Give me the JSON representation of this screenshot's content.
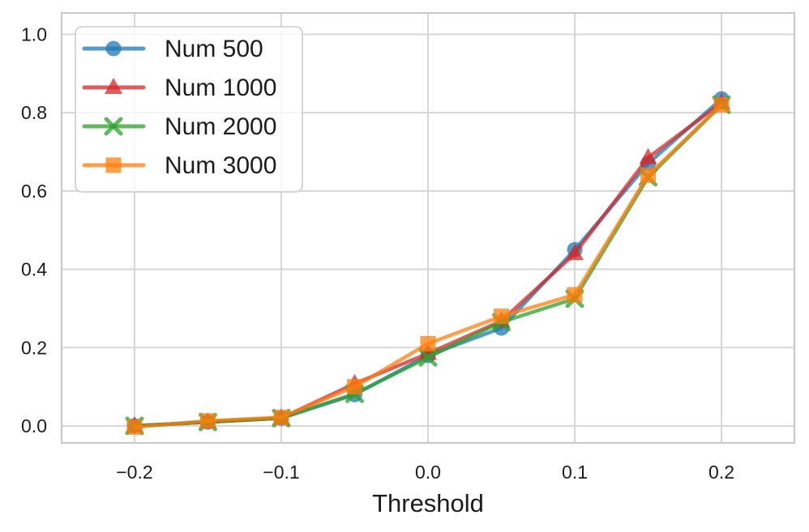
{
  "figure": {
    "xlabel": "Threshold"
  },
  "chart_data": {
    "type": "line",
    "title": "",
    "xlabel": "Threshold",
    "ylabel": "",
    "x": [
      -0.2,
      -0.15,
      -0.1,
      -0.05,
      0.0,
      0.05,
      0.1,
      0.15,
      0.2
    ],
    "series": [
      {
        "name": "Num 500",
        "color": "#1f77b4",
        "marker": "circle",
        "values": [
          0.0,
          0.01,
          0.02,
          0.08,
          0.18,
          0.25,
          0.45,
          0.67,
          0.835
        ]
      },
      {
        "name": "Num 1000",
        "color": "#d62728",
        "marker": "triangle",
        "values": [
          0.0,
          0.01,
          0.02,
          0.108,
          0.185,
          0.268,
          0.44,
          0.685,
          0.825
        ]
      },
      {
        "name": "Num 2000",
        "color": "#2ca02c",
        "marker": "x",
        "values": [
          0.0,
          0.01,
          0.02,
          0.082,
          0.175,
          0.265,
          0.325,
          0.635,
          0.82
        ]
      },
      {
        "name": "Num 3000",
        "color": "#ff7f0e",
        "marker": "square",
        "values": [
          -0.003,
          0.013,
          0.022,
          0.1,
          0.21,
          0.28,
          0.335,
          0.64,
          0.82
        ]
      }
    ],
    "xticks": [
      -0.2,
      -0.1,
      0.0,
      0.1,
      0.2
    ],
    "xtick_labels": [
      "−0.2",
      "−0.1",
      "0.0",
      "0.1",
      "0.2"
    ],
    "yticks": [
      0.0,
      0.2,
      0.4,
      0.6,
      0.8,
      1.0
    ],
    "ytick_labels": [
      "0.0",
      "0.2",
      "0.4",
      "0.6",
      "0.8",
      "1.0"
    ],
    "xlim": [
      -0.2497,
      0.2497
    ],
    "ylim": [
      -0.0434,
      1.0545
    ],
    "grid": true,
    "legend": {
      "position": "upper left",
      "labels": [
        "Num 500",
        "Num 1000",
        "Num 2000",
        "Num 3000"
      ]
    },
    "line_alpha": 0.75,
    "grid_color": "#d3d3d3",
    "spine_color": "#c9c9c9",
    "text_color": "#1c1c1c",
    "legend_border_color": "#cccccc"
  }
}
